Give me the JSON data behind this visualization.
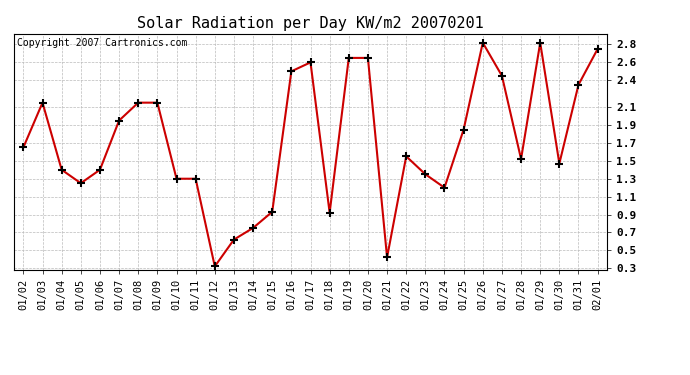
{
  "title": "Solar Radiation per Day KW/m2 20070201",
  "copyright": "Copyright 2007 Cartronics.com",
  "dates": [
    "01/02",
    "01/03",
    "01/04",
    "01/05",
    "01/06",
    "01/07",
    "01/08",
    "01/09",
    "01/10",
    "01/11",
    "01/12",
    "01/13",
    "01/14",
    "01/15",
    "01/16",
    "01/17",
    "01/18",
    "01/19",
    "01/20",
    "01/21",
    "01/22",
    "01/23",
    "01/24",
    "01/25",
    "01/26",
    "01/27",
    "01/28",
    "01/29",
    "01/30",
    "01/31",
    "02/01"
  ],
  "values": [
    1.65,
    2.15,
    1.4,
    1.25,
    1.4,
    1.95,
    2.15,
    2.15,
    1.3,
    1.3,
    0.32,
    0.62,
    0.75,
    0.93,
    2.5,
    2.6,
    0.92,
    2.65,
    2.65,
    0.42,
    1.55,
    1.35,
    1.2,
    1.85,
    2.82,
    2.45,
    1.52,
    2.82,
    1.47,
    2.35,
    2.75
  ],
  "line_color": "#cc0000",
  "marker": "+",
  "marker_color": "#000000",
  "bg_color": "#ffffff",
  "grid_color": "#bbbbbb",
  "yticks": [
    0.3,
    0.5,
    0.7,
    0.9,
    1.1,
    1.3,
    1.5,
    1.7,
    1.9,
    2.1,
    2.4,
    2.6,
    2.8
  ],
  "title_fontsize": 11,
  "copyright_fontsize": 7,
  "tick_fontsize": 7.5,
  "ytick_fontsize": 8
}
